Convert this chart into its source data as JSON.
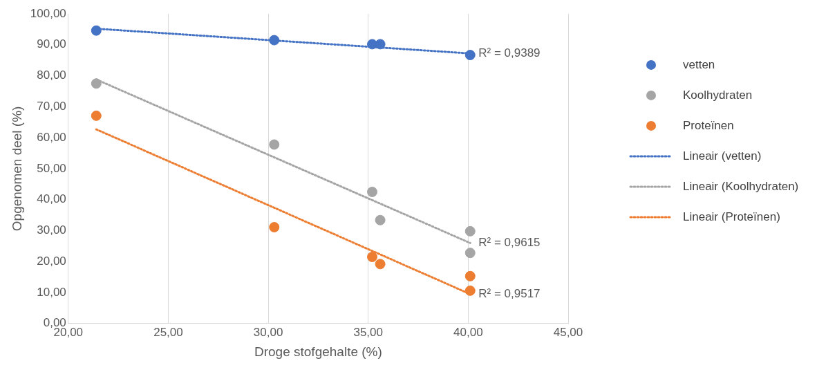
{
  "chart_data": {
    "type": "scatter",
    "xlabel": "Droge stofgehalte (%)",
    "ylabel": "Opgenomen deel (%)",
    "xlim": [
      20,
      45
    ],
    "xticks": [
      {
        "value": 20,
        "label": "20,00"
      },
      {
        "value": 25,
        "label": "25,00"
      },
      {
        "value": 30,
        "label": "30,00"
      },
      {
        "value": 35,
        "label": "35,00"
      },
      {
        "value": 40,
        "label": "40,00"
      },
      {
        "value": 45,
        "label": "45,00"
      }
    ],
    "ylim": [
      0,
      100
    ],
    "yticks": [
      {
        "value": 0,
        "label": "0,00"
      },
      {
        "value": 10,
        "label": "10,00"
      },
      {
        "value": 20,
        "label": "20,00"
      },
      {
        "value": 30,
        "label": "30,00"
      },
      {
        "value": 40,
        "label": "40,00"
      },
      {
        "value": 50,
        "label": "50,00"
      },
      {
        "value": 60,
        "label": "60,00"
      },
      {
        "value": 70,
        "label": "70,00"
      },
      {
        "value": 80,
        "label": "80,00"
      },
      {
        "value": 90,
        "label": "90,00"
      },
      {
        "value": 100,
        "label": "100,00"
      }
    ],
    "grid": "x",
    "legend": "right",
    "marker": "circle",
    "series": [
      {
        "name": "vetten",
        "color": "#4472c4",
        "x": [
          21.4,
          30.3,
          35.2,
          35.6,
          40.1
        ],
        "values": [
          94.6,
          91.5,
          90.2,
          90.2,
          86.7
        ]
      },
      {
        "name": "Koolhydraten",
        "color": "#a5a5a5",
        "x": [
          21.4,
          30.3,
          35.2,
          35.6,
          40.1,
          40.1
        ],
        "values": [
          77.5,
          57.8,
          42.5,
          33.4,
          29.8,
          22.8
        ]
      },
      {
        "name": "Proteïnen",
        "color": "#ed7d31",
        "x": [
          21.4,
          30.3,
          35.2,
          35.6,
          40.1,
          40.1
        ],
        "values": [
          67.1,
          31.1,
          21.5,
          19.2,
          15.3,
          10.6
        ]
      },
      {
        "name": "Lineair (vetten)",
        "type": "line",
        "marker": "none",
        "line_style": "dotted",
        "color": "#4472c4",
        "x": [
          21.4,
          40.1
        ],
        "values": [
          95.2,
          87.2
        ]
      },
      {
        "name": "Lineair (Koolhydraten)",
        "type": "line",
        "marker": "none",
        "line_style": "dotted",
        "color": "#a5a5a5",
        "x": [
          21.4,
          40.1
        ],
        "values": [
          78.8,
          26.0
        ]
      },
      {
        "name": "Lineair (Proteïnen)",
        "type": "line",
        "marker": "none",
        "line_style": "dotted",
        "color": "#ed7d31",
        "x": [
          21.4,
          40.1
        ],
        "values": [
          62.7,
          9.5
        ]
      }
    ],
    "annotations": [
      "R² = 0,9389",
      "R² = 0,9615",
      "R² = 0,9517"
    ]
  }
}
